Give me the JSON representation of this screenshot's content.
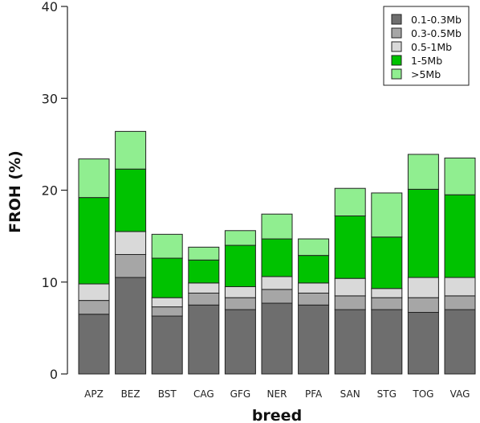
{
  "chart_data": {
    "type": "bar",
    "stacked": true,
    "title": "",
    "xlabel": "breed",
    "ylabel": "FROH (%)",
    "ylim": [
      0,
      40
    ],
    "yticks": [
      0,
      10,
      20,
      30,
      40
    ],
    "grid": false,
    "legend_position": "top-right",
    "categories": [
      "APZ",
      "BEZ",
      "BST",
      "CAG",
      "GFG",
      "NER",
      "PFA",
      "SAN",
      "STG",
      "TOG",
      "VAG"
    ],
    "series": [
      {
        "name": "0.1-0.3Mb",
        "color": "#6e6e6e",
        "values": [
          6.5,
          10.5,
          6.3,
          7.5,
          7.0,
          7.7,
          7.5,
          7.0,
          7.0,
          6.7,
          7.0
        ]
      },
      {
        "name": "0.3-0.5Mb",
        "color": "#a6a6a6",
        "values": [
          1.5,
          2.5,
          1.0,
          1.3,
          1.3,
          1.5,
          1.3,
          1.5,
          1.3,
          1.6,
          1.5
        ]
      },
      {
        "name": "0.5-1Mb",
        "color": "#d9d9d9",
        "values": [
          1.8,
          2.5,
          1.0,
          1.1,
          1.2,
          1.4,
          1.1,
          1.9,
          1.0,
          2.2,
          2.0
        ]
      },
      {
        "name": "1-5Mb",
        "color": "#00c200",
        "values": [
          9.4,
          6.8,
          4.3,
          2.5,
          4.5,
          4.1,
          3.0,
          6.8,
          5.6,
          9.6,
          9.0
        ]
      },
      {
        "name": ">5Mb",
        "color": "#90ee90",
        "values": [
          4.2,
          4.1,
          2.6,
          1.4,
          1.6,
          2.7,
          1.8,
          3.0,
          4.8,
          3.8,
          4.0
        ]
      }
    ]
  }
}
